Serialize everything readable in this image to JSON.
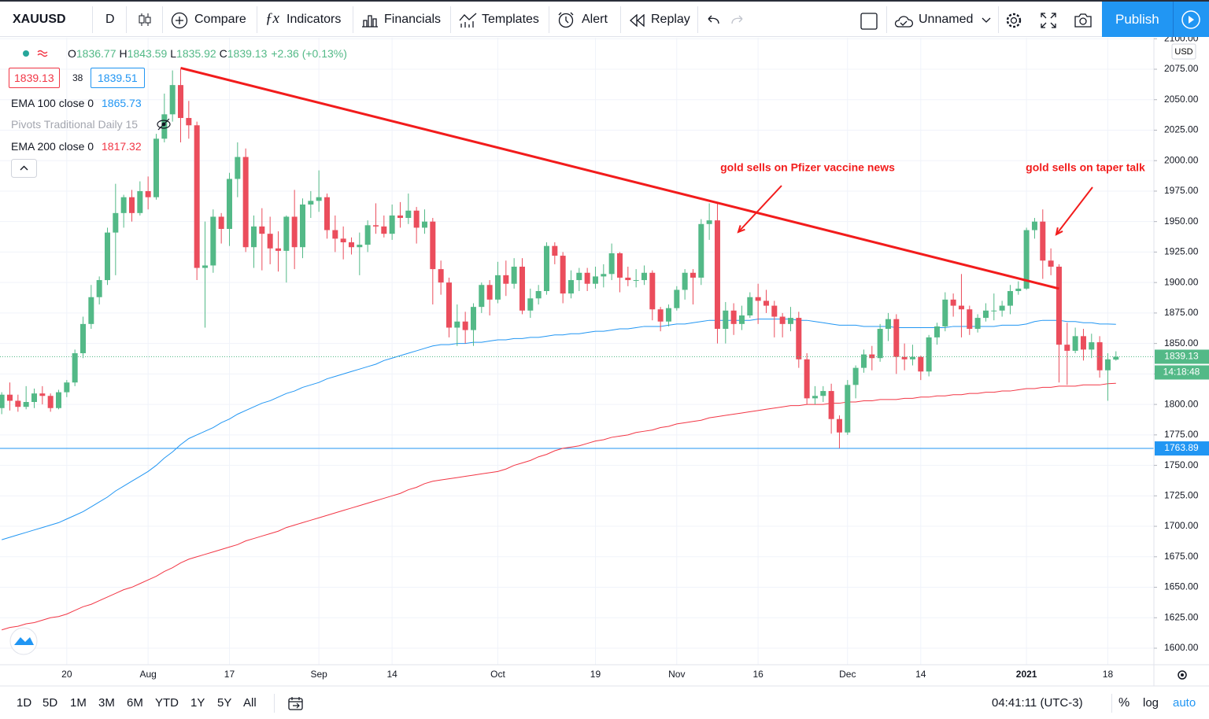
{
  "toolbar": {
    "symbol": "XAUUSD",
    "interval": "D",
    "buttons": [
      "Compare",
      "Indicators",
      "Financials",
      "Templates",
      "Alert",
      "Replay"
    ],
    "layout_name": "Unnamed",
    "publish": "Publish"
  },
  "legend": {
    "ohlc_labels": [
      "O",
      "H",
      "L",
      "C"
    ],
    "change": "+2.36 (+0.13%)",
    "sell": 1839.13,
    "spread": 38,
    "buy": 1839.51,
    "pivots": "Pivots Traditional Daily 15"
  },
  "bottom_bar": {
    "ranges": [
      "1D",
      "5D",
      "1M",
      "3M",
      "6M",
      "YTD",
      "1Y",
      "5Y",
      "All"
    ],
    "time": "04:41:11 (UTC-3)",
    "scale_options": [
      "%",
      "log",
      "auto"
    ]
  },
  "chart_data": {
    "type": "candlestick",
    "currency": "USD",
    "countdown": "14:18:48",
    "up_color": "#53b987",
    "down_color": "#eb4d5c",
    "grid": true,
    "ylim": [
      1586.45,
      2100.81
    ],
    "yticks": [
      {
        "value": 1600,
        "label": "1600.00"
      },
      {
        "value": 1625,
        "label": "1625.00"
      },
      {
        "value": 1650,
        "label": "1650.00"
      },
      {
        "value": 1675,
        "label": "1675.00"
      },
      {
        "value": 1700,
        "label": "1700.00"
      },
      {
        "value": 1725,
        "label": "1725.00"
      },
      {
        "value": 1750,
        "label": "1750.00"
      },
      {
        "value": 1775,
        "label": "1775.00"
      },
      {
        "value": 1800,
        "label": "1800.00"
      },
      {
        "value": 1825,
        "label": "1825.00"
      },
      {
        "value": 1850,
        "label": "1850.00"
      },
      {
        "value": 1875,
        "label": "1875.00"
      },
      {
        "value": 1900,
        "label": "1900.00"
      },
      {
        "value": 1925,
        "label": "1925.00"
      },
      {
        "value": 1950,
        "label": "1950.00"
      },
      {
        "value": 1975,
        "label": "1975.00"
      },
      {
        "value": 2000,
        "label": "2000.00"
      },
      {
        "value": 2025,
        "label": "2025.00"
      },
      {
        "value": 2050,
        "label": "2050.00"
      },
      {
        "value": 2075,
        "label": "2075.00"
      },
      {
        "value": 2100,
        "label": "2100.00"
      }
    ],
    "categories": [
      null,
      null,
      null,
      null,
      null,
      null,
      null,
      null,
      "20",
      null,
      null,
      null,
      null,
      null,
      null,
      null,
      null,
      null,
      "Aug",
      null,
      null,
      null,
      null,
      null,
      null,
      null,
      null,
      null,
      "17",
      null,
      null,
      null,
      null,
      null,
      null,
      null,
      null,
      null,
      null,
      "Sep",
      null,
      null,
      null,
      null,
      null,
      null,
      null,
      null,
      "14",
      null,
      null,
      null,
      null,
      null,
      null,
      null,
      null,
      null,
      null,
      null,
      null,
      "Oct",
      null,
      null,
      null,
      null,
      null,
      null,
      null,
      null,
      null,
      null,
      null,
      "19",
      null,
      null,
      null,
      null,
      null,
      null,
      null,
      null,
      null,
      "Nov",
      null,
      null,
      null,
      null,
      null,
      null,
      null,
      null,
      null,
      "16",
      null,
      null,
      null,
      null,
      null,
      null,
      null,
      null,
      null,
      null,
      "Dec",
      null,
      null,
      null,
      null,
      null,
      null,
      null,
      null,
      "14",
      null,
      null,
      null,
      null,
      null,
      null,
      null,
      null,
      null,
      null,
      null,
      null,
      "2021",
      null,
      null,
      null,
      null,
      null,
      null,
      null,
      null,
      null,
      "18",
      null
    ],
    "ohlc": [
      [
        1797,
        1810,
        1792,
        1808
      ],
      [
        1808,
        1818,
        1795,
        1803
      ],
      [
        1803,
        1808,
        1794,
        1798
      ],
      [
        1798,
        1815,
        1796,
        1802
      ],
      [
        1802,
        1813,
        1797,
        1809
      ],
      [
        1809,
        1815,
        1800,
        1807
      ],
      [
        1807,
        1809,
        1794,
        1797
      ],
      [
        1797,
        1812,
        1796,
        1810
      ],
      [
        1810,
        1820,
        1806,
        1818
      ],
      [
        1818,
        1845,
        1815,
        1842
      ],
      [
        1842,
        1872,
        1838,
        1866
      ],
      [
        1866,
        1898,
        1862,
        1888
      ],
      [
        1888,
        1905,
        1882,
        1902
      ],
      [
        1902,
        1945,
        1898,
        1941
      ],
      [
        1941,
        1981,
        1906,
        1957
      ],
      [
        1957,
        1972,
        1945,
        1970
      ],
      [
        1970,
        1976,
        1950,
        1957
      ],
      [
        1957,
        1983,
        1955,
        1975
      ],
      [
        1975,
        1987,
        1960,
        1970
      ],
      [
        1970,
        2022,
        1968,
        2018
      ],
      [
        2018,
        2055,
        2015,
        2038
      ],
      [
        2038,
        2074,
        2032,
        2062
      ],
      [
        2062,
        2075,
        2015,
        2035
      ],
      [
        2035,
        2049,
        2018,
        2029
      ],
      [
        2029,
        2032,
        1902,
        1912
      ],
      [
        1912,
        1950,
        1863,
        1914
      ],
      [
        1914,
        1960,
        1908,
        1954
      ],
      [
        1954,
        1957,
        1932,
        1944
      ],
      [
        1944,
        1990,
        1930,
        1985
      ],
      [
        1985,
        2015,
        1970,
        2003
      ],
      [
        2003,
        2010,
        1925,
        1929
      ],
      [
        1929,
        1955,
        1912,
        1946
      ],
      [
        1946,
        1961,
        1910,
        1940
      ],
      [
        1940,
        1954,
        1915,
        1928
      ],
      [
        1928,
        1942,
        1909,
        1926
      ],
      [
        1926,
        1955,
        1900,
        1954
      ],
      [
        1954,
        1976,
        1911,
        1929
      ],
      [
        1929,
        1969,
        1920,
        1964
      ],
      [
        1964,
        1975,
        1953,
        1967
      ],
      [
        1967,
        1992,
        1958,
        1970
      ],
      [
        1970,
        1973,
        1936,
        1943
      ],
      [
        1943,
        1955,
        1925,
        1936
      ],
      [
        1936,
        1946,
        1919,
        1933
      ],
      [
        1933,
        1937,
        1923,
        1929
      ],
      [
        1929,
        1941,
        1906,
        1931
      ],
      [
        1931,
        1951,
        1925,
        1947
      ],
      [
        1947,
        1965,
        1940,
        1946
      ],
      [
        1946,
        1955,
        1937,
        1940
      ],
      [
        1940,
        1964,
        1935,
        1955
      ],
      [
        1955,
        1966,
        1945,
        1953
      ],
      [
        1953,
        1973,
        1948,
        1959
      ],
      [
        1959,
        1962,
        1932,
        1945
      ],
      [
        1945,
        1960,
        1940,
        1950
      ],
      [
        1950,
        1953,
        1882,
        1911
      ],
      [
        1911,
        1918,
        1890,
        1900
      ],
      [
        1900,
        1904,
        1855,
        1863
      ],
      [
        1863,
        1882,
        1848,
        1868
      ],
      [
        1868,
        1876,
        1850,
        1861
      ],
      [
        1861,
        1883,
        1848,
        1880
      ],
      [
        1880,
        1900,
        1875,
        1898
      ],
      [
        1898,
        1902,
        1873,
        1886
      ],
      [
        1886,
        1917,
        1883,
        1906
      ],
      [
        1906,
        1918,
        1889,
        1899
      ],
      [
        1899,
        1920,
        1895,
        1913
      ],
      [
        1913,
        1920,
        1874,
        1877
      ],
      [
        1877,
        1895,
        1871,
        1887
      ],
      [
        1887,
        1898,
        1882,
        1893
      ],
      [
        1893,
        1933,
        1890,
        1930
      ],
      [
        1930,
        1933,
        1915,
        1922
      ],
      [
        1922,
        1925,
        1883,
        1891
      ],
      [
        1891,
        1910,
        1887,
        1902
      ],
      [
        1902,
        1912,
        1893,
        1908
      ],
      [
        1908,
        1912,
        1893,
        1899
      ],
      [
        1899,
        1913,
        1895,
        1905
      ],
      [
        1905,
        1915,
        1896,
        1907
      ],
      [
        1907,
        1932,
        1902,
        1924
      ],
      [
        1924,
        1925,
        1892,
        1904
      ],
      [
        1904,
        1913,
        1897,
        1902
      ],
      [
        1902,
        1911,
        1896,
        1902
      ],
      [
        1902,
        1914,
        1898,
        1908
      ],
      [
        1908,
        1910,
        1869,
        1878
      ],
      [
        1878,
        1880,
        1860,
        1868
      ],
      [
        1868,
        1882,
        1864,
        1879
      ],
      [
        1879,
        1897,
        1877,
        1894
      ],
      [
        1894,
        1911,
        1886,
        1908
      ],
      [
        1908,
        1911,
        1882,
        1904
      ],
      [
        1904,
        1952,
        1898,
        1948
      ],
      [
        1948,
        1965,
        1935,
        1951
      ],
      [
        1951,
        1966,
        1850,
        1862
      ],
      [
        1862,
        1884,
        1850,
        1877
      ],
      [
        1877,
        1883,
        1857,
        1866
      ],
      [
        1866,
        1881,
        1861,
        1873
      ],
      [
        1873,
        1892,
        1871,
        1888
      ],
      [
        1888,
        1899,
        1866,
        1885
      ],
      [
        1885,
        1894,
        1875,
        1881
      ],
      [
        1881,
        1885,
        1855,
        1872
      ],
      [
        1872,
        1875,
        1855,
        1866
      ],
      [
        1866,
        1880,
        1860,
        1871
      ],
      [
        1871,
        1876,
        1830,
        1837
      ],
      [
        1837,
        1842,
        1800,
        1805
      ],
      [
        1805,
        1815,
        1800,
        1807
      ],
      [
        1807,
        1815,
        1802,
        1811
      ],
      [
        1811,
        1817,
        1776,
        1788
      ],
      [
        1788,
        1791,
        1764,
        1777
      ],
      [
        1777,
        1820,
        1775,
        1816
      ],
      [
        1816,
        1832,
        1805,
        1830
      ],
      [
        1830,
        1845,
        1826,
        1841
      ],
      [
        1841,
        1848,
        1828,
        1838
      ],
      [
        1838,
        1866,
        1835,
        1862
      ],
      [
        1862,
        1875,
        1852,
        1870
      ],
      [
        1870,
        1874,
        1825,
        1839
      ],
      [
        1839,
        1850,
        1828,
        1837
      ],
      [
        1837,
        1849,
        1832,
        1839
      ],
      [
        1839,
        1840,
        1820,
        1827
      ],
      [
        1827,
        1857,
        1823,
        1855
      ],
      [
        1855,
        1867,
        1849,
        1864
      ],
      [
        1864,
        1892,
        1860,
        1886
      ],
      [
        1886,
        1891,
        1872,
        1881
      ],
      [
        1881,
        1907,
        1855,
        1878
      ],
      [
        1878,
        1881,
        1857,
        1862
      ],
      [
        1862,
        1874,
        1859,
        1871
      ],
      [
        1871,
        1883,
        1868,
        1877
      ],
      [
        1877,
        1891,
        1869,
        1877
      ],
      [
        1877,
        1885,
        1872,
        1881
      ],
      [
        1881,
        1898,
        1874,
        1893
      ],
      [
        1893,
        1901,
        1890,
        1895
      ],
      [
        1895,
        1945,
        1894,
        1943
      ],
      [
        1943,
        1953,
        1936,
        1950
      ],
      [
        1950,
        1960,
        1903,
        1918
      ],
      [
        1918,
        1928,
        1906,
        1913
      ],
      [
        1913,
        1915,
        1818,
        1849
      ],
      [
        1849,
        1867,
        1816,
        1844
      ],
      [
        1844,
        1863,
        1842,
        1856
      ],
      [
        1856,
        1862,
        1836,
        1845
      ],
      [
        1845,
        1858,
        1838,
        1851
      ],
      [
        1851,
        1856,
        1822,
        1828
      ],
      [
        1828,
        1842,
        1803,
        1837
      ],
      [
        1836.77,
        1843.59,
        1835.92,
        1839.13
      ]
    ],
    "lines": [
      {
        "name": "EMA 100 close 0",
        "color": "#2196f3",
        "values": [
          1689,
          1691,
          1693,
          1695,
          1697,
          1699,
          1701,
          1703,
          1706,
          1709,
          1712,
          1716,
          1720,
          1724,
          1729,
          1733,
          1737,
          1741,
          1745,
          1750,
          1756,
          1761,
          1767,
          1772,
          1775,
          1778,
          1781,
          1785,
          1788,
          1792,
          1795,
          1798,
          1801,
          1803,
          1806,
          1809,
          1811,
          1814,
          1816,
          1818,
          1821,
          1823,
          1825,
          1827,
          1829,
          1831,
          1833,
          1836,
          1838,
          1840,
          1842,
          1844,
          1846,
          1848,
          1849,
          1849,
          1850,
          1850,
          1851,
          1851,
          1852,
          1853,
          1853,
          1854,
          1854,
          1855,
          1855,
          1856,
          1857,
          1857,
          1858,
          1858,
          1859,
          1860,
          1860,
          1861,
          1862,
          1862,
          1863,
          1864,
          1864,
          1864,
          1865,
          1866,
          1866,
          1867,
          1868,
          1869,
          1869,
          1869,
          1869,
          1869,
          1869,
          1870,
          1870,
          1870,
          1870,
          1870,
          1869,
          1869,
          1868,
          1867,
          1866,
          1865,
          1865,
          1865,
          1864,
          1864,
          1864,
          1864,
          1863,
          1863,
          1863,
          1863,
          1863,
          1863,
          1863,
          1864,
          1864,
          1864,
          1864,
          1864,
          1864,
          1865,
          1865,
          1865,
          1866,
          1868,
          1869,
          1869,
          1869,
          1868,
          1868,
          1867,
          1867,
          1866,
          1866,
          1865.73
        ]
      },
      {
        "name": "EMA 200 close 0",
        "color": "#f23645",
        "values": [
          1615,
          1617,
          1618,
          1620,
          1621,
          1623,
          1625,
          1626,
          1628,
          1631,
          1634,
          1636,
          1639,
          1642,
          1645,
          1648,
          1650,
          1653,
          1656,
          1659,
          1663,
          1666,
          1670,
          1673,
          1675,
          1677,
          1679,
          1681,
          1683,
          1685,
          1688,
          1690,
          1692,
          1694,
          1696,
          1699,
          1701,
          1703,
          1705,
          1707,
          1709,
          1711,
          1713,
          1715,
          1717,
          1719,
          1721,
          1723,
          1725,
          1727,
          1730,
          1732,
          1735,
          1737,
          1738,
          1739,
          1740,
          1741,
          1742,
          1743,
          1744,
          1745,
          1747,
          1750,
          1752,
          1754,
          1757,
          1759,
          1762,
          1764,
          1765,
          1766,
          1768,
          1770,
          1771,
          1773,
          1774,
          1775,
          1777,
          1778,
          1779,
          1781,
          1782,
          1784,
          1785,
          1786,
          1787,
          1789,
          1790,
          1791,
          1792,
          1793,
          1794,
          1795,
          1796,
          1797,
          1798,
          1799,
          1799,
          1800,
          1800,
          1800,
          1801,
          1801,
          1802,
          1802,
          1803,
          1803,
          1804,
          1804,
          1804,
          1805,
          1805,
          1806,
          1806,
          1807,
          1807,
          1808,
          1808,
          1809,
          1809,
          1810,
          1810,
          1811,
          1811,
          1812,
          1813,
          1813,
          1814,
          1814,
          1815,
          1815,
          1815,
          1816,
          1816,
          1816,
          1817,
          1817.32
        ]
      }
    ],
    "hline": {
      "value": 1763.89,
      "color": "#2196f3"
    },
    "trendline": {
      "from": [
        22,
        2076
      ],
      "to": [
        130,
        1895
      ],
      "color": "#f21c1c"
    },
    "annotations": [
      "gold sells on Pfizer vaccine news",
      "gold sells on taper talk"
    ]
  }
}
